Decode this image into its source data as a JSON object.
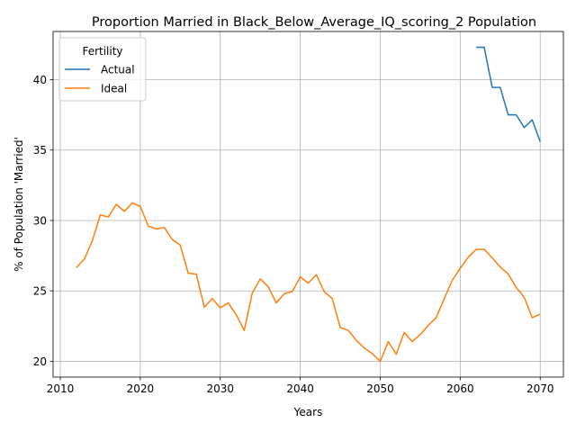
{
  "chart_data": {
    "type": "line",
    "title": "Proportion Married in Black_Below_Average_IQ_scoring_2 Population",
    "xlabel": "Years",
    "ylabel": "% of Population 'Married'",
    "xlim": [
      2009.1,
      2072.9
    ],
    "ylim": [
      18.88,
      43.42
    ],
    "xticks": [
      2010,
      2020,
      2030,
      2040,
      2050,
      2060,
      2070
    ],
    "yticks": [
      20,
      25,
      30,
      35,
      40
    ],
    "grid": true,
    "legend": {
      "title": "Fertility",
      "placement": "top-left"
    },
    "series": [
      {
        "name": "Actual",
        "color": "#1f77b4",
        "x": [
          2062,
          2063,
          2064,
          2065,
          2066,
          2067,
          2068,
          2069,
          2070
        ],
        "y": [
          42.3,
          42.3,
          39.45,
          39.45,
          37.5,
          37.5,
          36.6,
          37.15,
          35.6
        ]
      },
      {
        "name": "Ideal",
        "color": "#ff7f0e",
        "x": [
          2012,
          2013,
          2014,
          2015,
          2016,
          2017,
          2018,
          2019,
          2020,
          2021,
          2022,
          2023,
          2024,
          2025,
          2026,
          2027,
          2028,
          2029,
          2030,
          2031,
          2032,
          2033,
          2034,
          2035,
          2036,
          2037,
          2038,
          2039,
          2040,
          2041,
          2042,
          2043,
          2044,
          2045,
          2046,
          2047,
          2048,
          2049,
          2050,
          2051,
          2052,
          2053,
          2054,
          2055,
          2056,
          2057,
          2058,
          2059,
          2060,
          2061,
          2062,
          2063,
          2064,
          2065,
          2066,
          2067,
          2068,
          2069,
          2070
        ],
        "y": [
          26.65,
          27.25,
          28.55,
          30.4,
          30.25,
          31.15,
          30.65,
          31.25,
          31.0,
          29.6,
          29.4,
          29.5,
          28.65,
          28.25,
          26.25,
          26.2,
          23.85,
          24.45,
          23.8,
          24.15,
          23.3,
          22.2,
          24.85,
          25.85,
          25.3,
          24.15,
          24.8,
          24.95,
          26.0,
          25.55,
          26.15,
          24.95,
          24.45,
          22.4,
          22.2,
          21.5,
          20.95,
          20.55,
          20.0,
          21.4,
          20.5,
          22.05,
          21.4,
          21.9,
          22.55,
          23.1,
          24.45,
          25.75,
          26.6,
          27.4,
          27.95,
          27.95,
          27.35,
          26.7,
          26.2,
          25.25,
          24.55,
          23.1,
          23.35
        ]
      }
    ]
  }
}
